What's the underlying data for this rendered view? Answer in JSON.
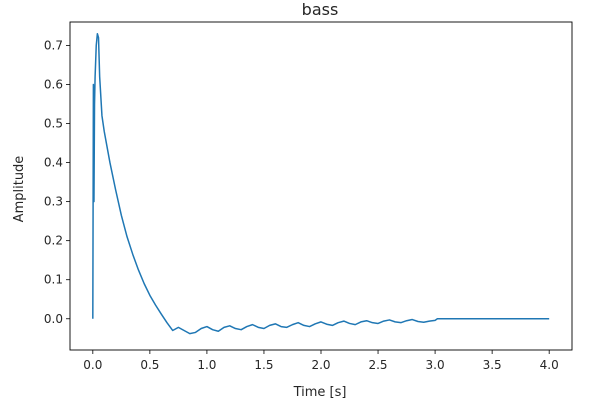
{
  "chart_data": {
    "type": "line",
    "title": "bass",
    "xlabel": "Time [s]",
    "ylabel": "Amplitude",
    "xlim": [
      -0.2,
      4.2
    ],
    "ylim": [
      -0.08,
      0.76
    ],
    "x_ticks": [
      "0.0",
      "0.5",
      "1.0",
      "1.5",
      "2.0",
      "2.5",
      "3.0",
      "3.5",
      "4.0"
    ],
    "y_ticks": [
      "0.0",
      "0.1",
      "0.2",
      "0.3",
      "0.4",
      "0.5",
      "0.6",
      "0.7"
    ],
    "grid": false,
    "series": [
      {
        "color": "#1f77b4",
        "x": [
          0.0,
          0.005,
          0.01,
          0.015,
          0.02,
          0.03,
          0.04,
          0.05,
          0.06,
          0.08,
          0.1,
          0.15,
          0.2,
          0.25,
          0.3,
          0.35,
          0.4,
          0.45,
          0.5,
          0.55,
          0.6,
          0.65,
          0.7,
          0.75,
          0.8,
          0.85,
          0.9,
          0.95,
          1.0,
          1.05,
          1.1,
          1.15,
          1.2,
          1.25,
          1.3,
          1.35,
          1.4,
          1.45,
          1.5,
          1.55,
          1.6,
          1.65,
          1.7,
          1.75,
          1.8,
          1.85,
          1.9,
          1.95,
          2.0,
          2.05,
          2.1,
          2.15,
          2.2,
          2.25,
          2.3,
          2.35,
          2.4,
          2.45,
          2.5,
          2.55,
          2.6,
          2.65,
          2.7,
          2.75,
          2.8,
          2.85,
          2.9,
          2.95,
          3.0,
          3.02,
          3.05,
          3.1,
          3.5,
          4.0
        ],
        "y": [
          0.0,
          0.6,
          0.3,
          0.55,
          0.62,
          0.7,
          0.73,
          0.72,
          0.62,
          0.52,
          0.48,
          0.4,
          0.33,
          0.265,
          0.21,
          0.165,
          0.125,
          0.09,
          0.06,
          0.035,
          0.012,
          -0.01,
          -0.03,
          -0.022,
          -0.03,
          -0.038,
          -0.035,
          -0.025,
          -0.02,
          -0.028,
          -0.032,
          -0.022,
          -0.018,
          -0.025,
          -0.028,
          -0.02,
          -0.015,
          -0.022,
          -0.025,
          -0.017,
          -0.013,
          -0.02,
          -0.022,
          -0.015,
          -0.01,
          -0.017,
          -0.02,
          -0.013,
          -0.008,
          -0.014,
          -0.017,
          -0.01,
          -0.006,
          -0.012,
          -0.015,
          -0.008,
          -0.005,
          -0.01,
          -0.012,
          -0.006,
          -0.003,
          -0.008,
          -0.01,
          -0.005,
          -0.002,
          -0.007,
          -0.009,
          -0.006,
          -0.004,
          0.0,
          0.0,
          0.0,
          0.0,
          0.0
        ]
      }
    ]
  }
}
